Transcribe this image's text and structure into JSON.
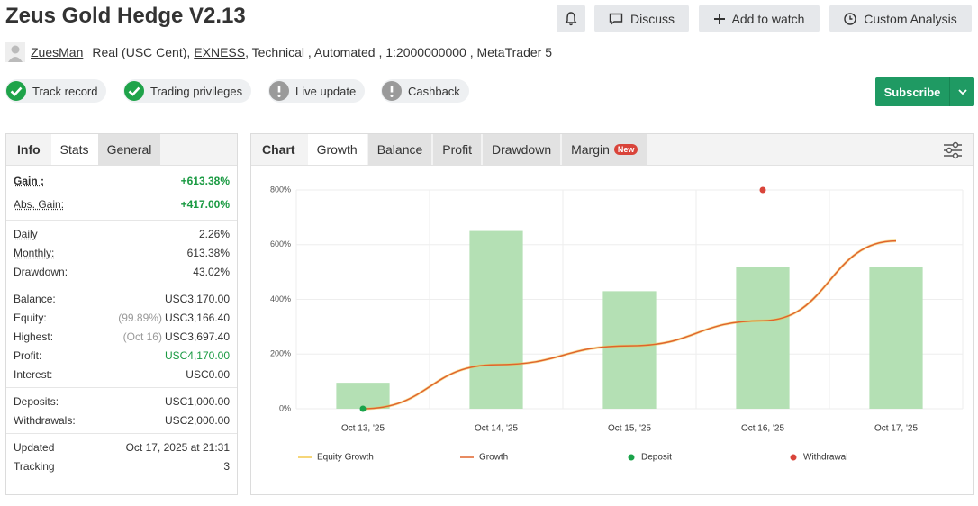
{
  "header": {
    "title": "Zeus Gold Hedge V2.13",
    "buttons": [
      "Discuss",
      "Add to watch",
      "Custom Analysis"
    ]
  },
  "profile": {
    "user": "ZuesMan",
    "account": "Real (USC Cent),",
    "broker": "EXNESS",
    "details": ", Technical , Automated , 1:2000000000 , MetaTrader 5"
  },
  "badges": [
    {
      "label": "Track record",
      "verified": true
    },
    {
      "label": "Trading privileges",
      "verified": true
    },
    {
      "label": "Live update",
      "verified": false
    },
    {
      "label": "Cashback",
      "verified": false
    }
  ],
  "subscribe": "Subscribe",
  "stats_tabs": [
    "Info",
    "Stats",
    "General"
  ],
  "stats": [
    [
      {
        "label": "Gain :",
        "value": "+613.38%"
      },
      {
        "label": "Abs. Gain:",
        "value": "+417.00%"
      }
    ],
    [
      {
        "label": "Daily",
        "value": "2.26%"
      },
      {
        "label": "Monthly:",
        "value": "613.38%"
      },
      {
        "label": "Drawdown:",
        "value": "43.02%"
      }
    ],
    [
      {
        "label": "Balance:",
        "value": "USC3,170.00"
      },
      {
        "label": "Equity:",
        "note": "(99.89%)",
        "value": "USC3,166.40"
      },
      {
        "label": "Highest:",
        "note": "(Oct 16)",
        "value": "USC3,697.40"
      },
      {
        "label": "Profit:",
        "value": "USC4,170.00"
      },
      {
        "label": "Interest:",
        "value": "USC0.00"
      }
    ],
    [
      {
        "label": "Deposits:",
        "value": "USC1,000.00"
      },
      {
        "label": "Withdrawals:",
        "value": "USC2,000.00"
      }
    ],
    [
      {
        "label": "Updated",
        "value": "Oct 17, 2025 at 21:31"
      },
      {
        "label": "Tracking",
        "value": "3"
      }
    ]
  ],
  "chart_tabs": [
    "Chart",
    "Growth",
    "Balance",
    "Profit",
    "Drawdown",
    "Margin"
  ],
  "new_badge": "New",
  "chart_data": {
    "type": "bar",
    "categories": [
      "Oct 13, '25",
      "Oct 14, '25",
      "Oct 15, '25",
      "Oct 16, '25",
      "Oct 17, '25"
    ],
    "values": [
      95,
      650,
      430,
      520,
      520
    ],
    "color": "#b4e0b4",
    "ylim": [
      0,
      800
    ],
    "yticks": [
      {
        "value": 0,
        "label": "0%"
      },
      {
        "value": 200,
        "label": "200%"
      },
      {
        "value": 400,
        "label": "400%"
      },
      {
        "value": 600,
        "label": "600%"
      },
      {
        "value": 800,
        "label": "800%"
      }
    ],
    "grid": true,
    "series": [
      {
        "name": "Equity Growth",
        "type": "line",
        "color": "#f2c94c",
        "values": [
          0,
          161,
          230,
          322,
          613.38
        ]
      },
      {
        "name": "Growth",
        "type": "line",
        "color": "#e0642c",
        "values": [
          0,
          161,
          230,
          322,
          613.38
        ]
      },
      {
        "name": "Deposit",
        "type": "scatter",
        "color": "#1aa34a",
        "values": [
          0,
          null,
          null,
          null,
          null
        ]
      },
      {
        "name": "Withdrawal",
        "type": "scatter",
        "color": "#d9443a",
        "values": [
          null,
          null,
          null,
          800,
          null
        ]
      }
    ]
  }
}
